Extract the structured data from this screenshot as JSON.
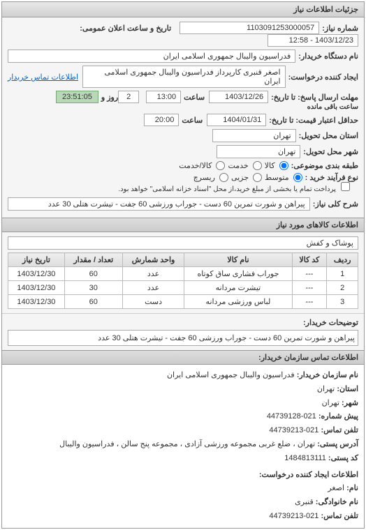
{
  "header": {
    "title": "جزئیات اطلاعات نیاز"
  },
  "info": {
    "request_no_label": "شماره نیاز:",
    "request_no": "1103091253000057",
    "announce_label": "تاریخ و ساعت اعلان عمومی:",
    "announce_value": "1403/12/23 - 12:58",
    "buyer_org_label": "نام دستگاه خریدار:",
    "buyer_org": "فدراسیون والیبال جمهوری اسلامی ایران",
    "requester_label": "ایجاد کننده درخواست:",
    "requester": "اصغر  قنبری  کارپرداز  فدراسیون والیبال جمهوری اسلامی ایران",
    "buyer_contact_link": "اطلاعات تماس خریدار",
    "deadline_send_label": "مهلت ارسال پاسخ: تا تاریخ:",
    "deadline_send_date": "1403/12/26",
    "time_label": "ساعت",
    "deadline_send_time": "13:00",
    "and_label": "و",
    "days_remaining": "2",
    "days_remaining_label": "روز و",
    "countdown_time": "23:51:05",
    "countdown_suffix": "ساعت باقی مانده",
    "validity_label": "حداقل اعتبار قیمت: تا تاریخ:",
    "validity_date": "1404/01/31",
    "validity_time": "20:00",
    "delivery_state_label": "استان محل تحویل:",
    "delivery_state": "تهران",
    "delivery_city_label": "شهر محل تحویل:",
    "delivery_city": "تهران",
    "budget_label": "طبقه بندی موضوعی:",
    "budget_options": {
      "goods": "کالا",
      "service": "خدمت",
      "goods_service": "کالا/خدمت"
    },
    "purchase_type_label": "نوع فرآیند خرید :",
    "purchase_options": {
      "small": "متوسط",
      "partial": "جزیی",
      "research": "ریسرچ"
    },
    "payment_note_label": "پرداخت تمام یا بخشی از مبلغ خرید،از محل \"اسناد خزانه اسلامی\" خواهد بود.",
    "subject_label": "شرح کلی نیاز:",
    "subject": "پیراهن و شورت تمرین 60 دست - جوراب ورزشی 60 جفت - تیشرت هتلی 30 عدد"
  },
  "items": {
    "section_title": "اطلاعات کالاهای مورد نیاز",
    "group_label": "",
    "group_value": "پوشاک و کفش",
    "columns": [
      "ردیف",
      "کد کالا",
      "نام کالا",
      "واحد شمارش",
      "تعداد / مقدار",
      "تاریخ نیاز"
    ],
    "rows": [
      [
        "1",
        "---",
        "جوراب فشاری ساق کوتاه",
        "عدد",
        "60",
        "1403/12/30"
      ],
      [
        "2",
        "---",
        "تیشرت مردانه",
        "عدد",
        "30",
        "1403/12/30"
      ],
      [
        "3",
        "---",
        "لباس ورزشی مردانه",
        "دست",
        "60",
        "1403/12/30"
      ]
    ]
  },
  "buyer_desc": {
    "label": "توضیحات خریدار:",
    "text": "پیراهن و شورت تمرین 60 دست - جوراب ورزشی 60 جفت - تیشرت هتلی 30 عدد"
  },
  "contact": {
    "section_title": "اطلاعات تماس سازمان خریدار:",
    "org_label": "نام سازمان خریدار:",
    "org": "فدراسیون والیبال جمهوری اسلامی ایران",
    "state_label": "استان:",
    "state": "تهران",
    "city_label": "شهر:",
    "city": "تهران",
    "prefix_label": "پیش شماره:",
    "prefix": "021-44739128",
    "tel_label": "تلفن تماس:",
    "tel": "021-44739213",
    "addr_label": "آدرس پستی:",
    "addr": "تهران ، ضلع غربی مجموعه ورزشی آزادی ، مجموعه پنج سالن ، فدراسیون والیبال",
    "post_label": "کد پستی:",
    "post": "1484813111",
    "creator_section": "اطلاعات ایجاد کننده درخواست:",
    "name_label": "نام:",
    "name": "اصغر",
    "family_label": "نام خانوادگی:",
    "family": "قنبری",
    "creator_tel_label": "تلفن تماس:",
    "creator_tel": "021-44739213"
  }
}
